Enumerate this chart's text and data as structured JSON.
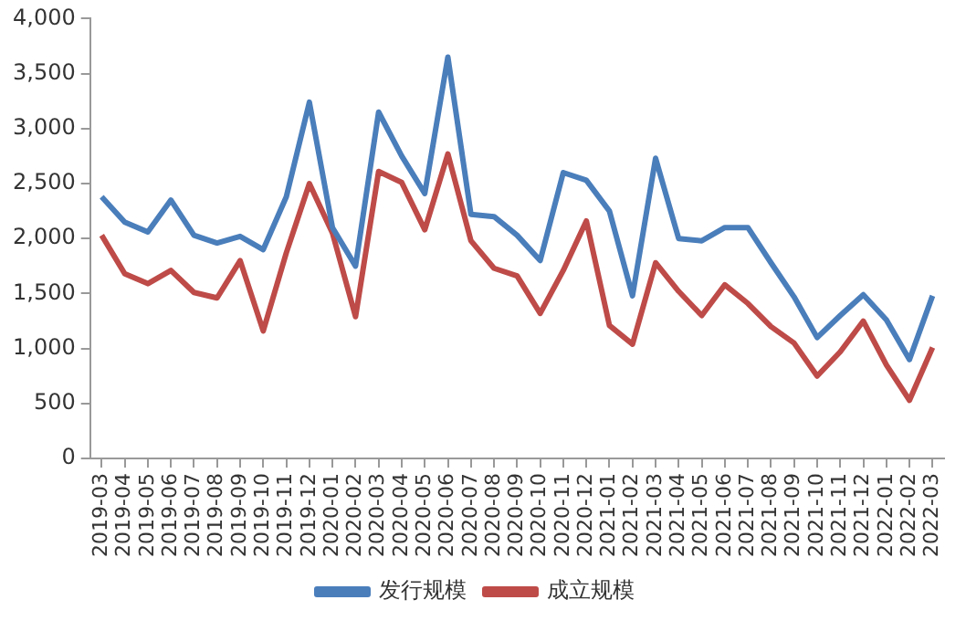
{
  "chart_data": {
    "type": "line",
    "categories": [
      "2019-03",
      "2019-04",
      "2019-05",
      "2019-06",
      "2019-07",
      "2019-08",
      "2019-09",
      "2019-10",
      "2019-11",
      "2019-12",
      "2020-01",
      "2020-02",
      "2020-03",
      "2020-04",
      "2020-05",
      "2020-06",
      "2020-07",
      "2020-08",
      "2020-09",
      "2020-10",
      "2020-11",
      "2020-12",
      "2021-01",
      "2021-02",
      "2021-03",
      "2021-04",
      "2021-05",
      "2021-06",
      "2021-07",
      "2021-08",
      "2021-09",
      "2021-10",
      "2021-11",
      "2021-12",
      "2022-01",
      "2022-02",
      "2022-03"
    ],
    "series": [
      {
        "name": "发行规模",
        "color": "#4a7ebb",
        "values": [
          2380,
          2150,
          2060,
          2350,
          2030,
          1960,
          2020,
          1900,
          2380,
          3240,
          2100,
          1750,
          3150,
          2750,
          2410,
          3650,
          2220,
          2200,
          2030,
          1800,
          2600,
          2530,
          2250,
          1480,
          2730,
          2000,
          1980,
          2100,
          2100,
          1780,
          1470,
          1100,
          1300,
          1490,
          1260,
          900,
          1480
        ]
      },
      {
        "name": "成立规模",
        "color": "#be4b48",
        "values": [
          2030,
          1680,
          1590,
          1710,
          1510,
          1460,
          1800,
          1160,
          1870,
          2500,
          2050,
          1290,
          2610,
          2510,
          2080,
          2770,
          1980,
          1730,
          1660,
          1320,
          1710,
          2160,
          1210,
          1040,
          1780,
          1520,
          1300,
          1580,
          1410,
          1200,
          1050,
          750,
          970,
          1250,
          850,
          530,
          1010
        ]
      }
    ],
    "ylim": [
      0,
      4000
    ],
    "yticks": [
      0,
      500,
      {
        "value": 1000,
        "label": "1,000"
      },
      {
        "value": 1500,
        "label": "1,500"
      },
      {
        "value": 2000,
        "label": "2,000"
      },
      {
        "value": 2500,
        "label": "2,500"
      },
      {
        "value": 3000,
        "label": "3,000"
      },
      {
        "value": 3500,
        "label": "3,500"
      },
      {
        "value": 4000,
        "label": "4,000"
      }
    ],
    "grid": false,
    "legend": "bottom",
    "marker": "none",
    "line_style": "solid"
  }
}
